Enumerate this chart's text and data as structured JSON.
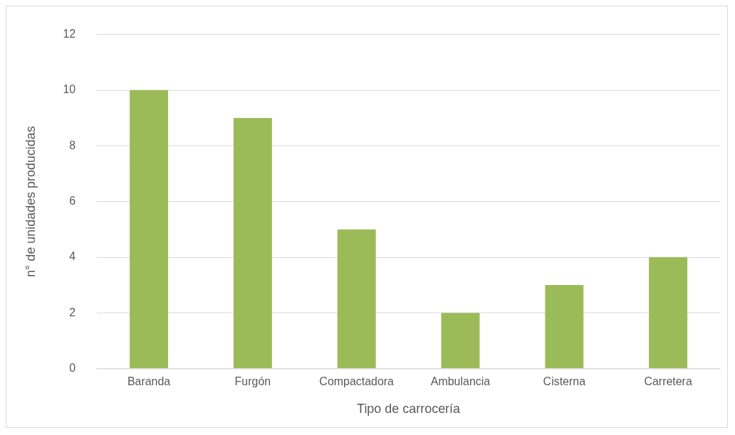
{
  "chart_data": {
    "type": "bar",
    "xlabel": "Tipo de carrocería",
    "ylabel": "n° de unidades producidas",
    "categories": [
      "Baranda",
      "Furgón",
      "Compactadora",
      "Ambulancia",
      "Cisterna",
      "Carretera"
    ],
    "values": [
      10,
      9,
      5,
      2,
      3,
      4
    ],
    "color": "#9bbb59",
    "ylim": [
      0,
      12
    ],
    "yticks": [
      0,
      2,
      4,
      6,
      8,
      10,
      12
    ],
    "grid": "y",
    "legend": false
  }
}
